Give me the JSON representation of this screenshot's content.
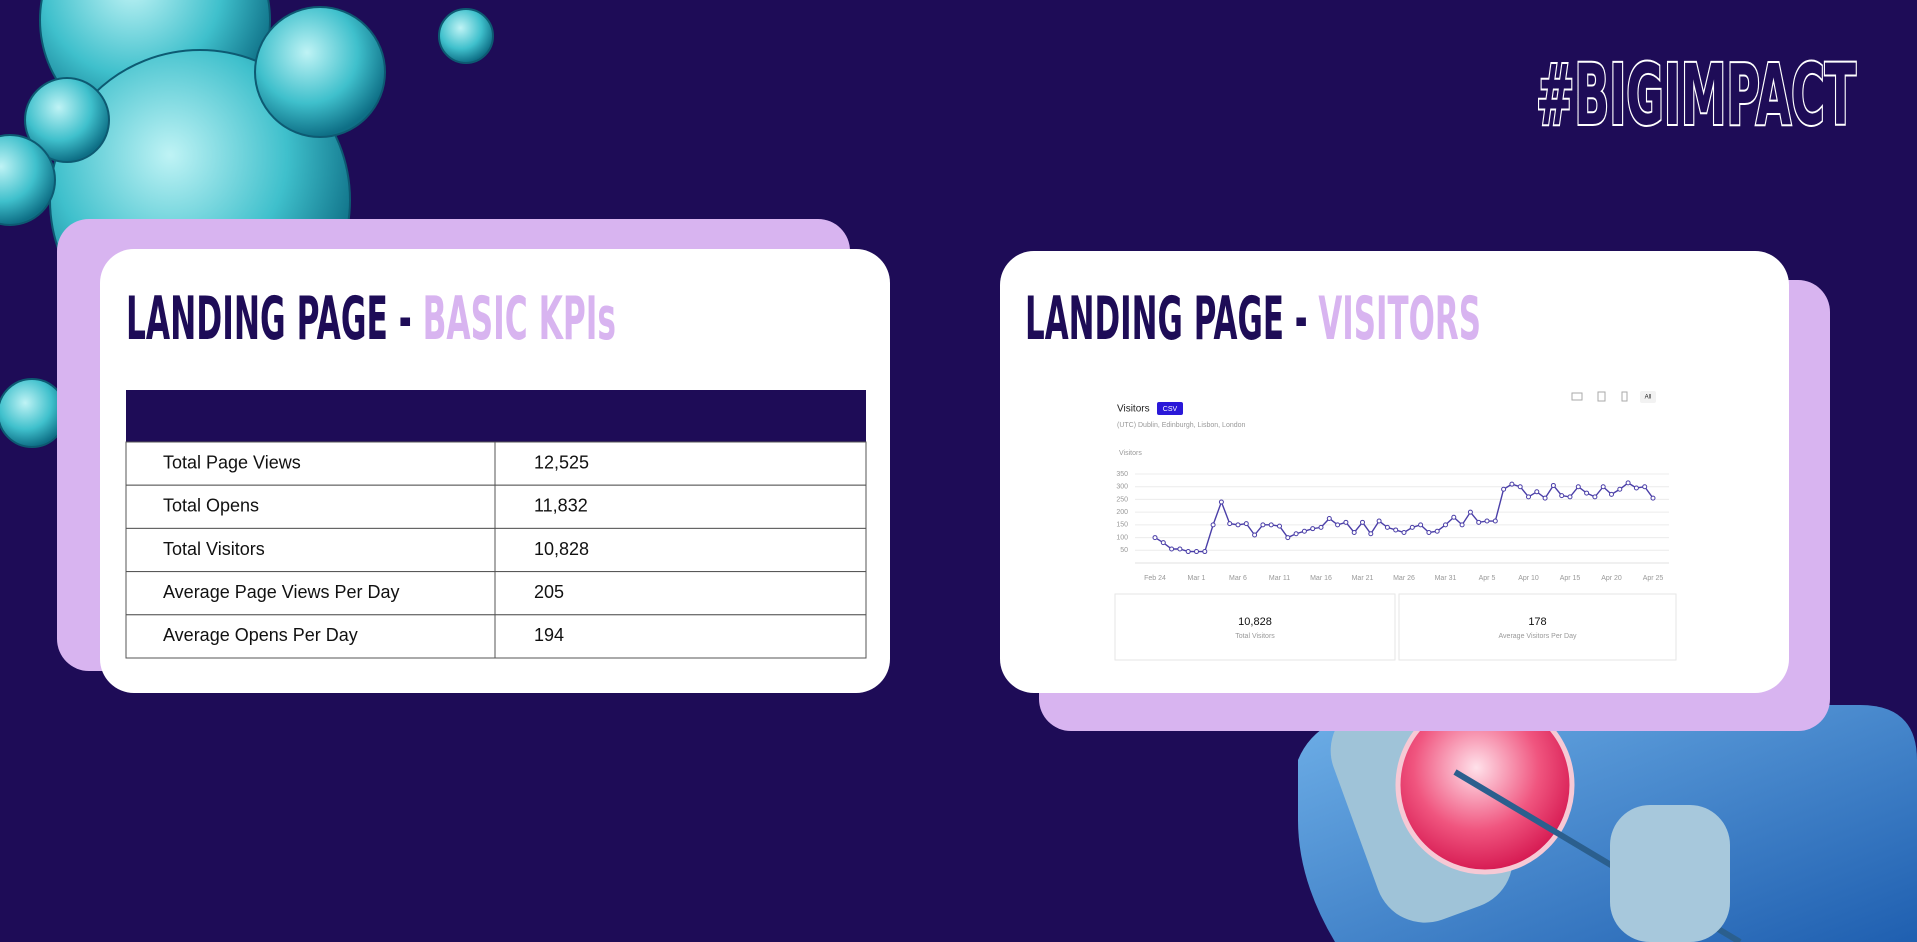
{
  "header": {
    "hashtag": "#BIGIMPACT"
  },
  "kpi_card": {
    "title": "LANDING PAGE - ",
    "title_highlight": "BASIC KPIs",
    "table": {
      "rows": [
        [
          "Total Page Views",
          "12,525"
        ],
        [
          "Total Opens",
          "11,832"
        ],
        [
          "Total Visitors",
          "10,828"
        ],
        [
          "Average Page Views Per Day",
          "205"
        ],
        [
          "Average Opens Per Day",
          "194"
        ]
      ]
    }
  },
  "visitors_card": {
    "title": "LANDING PAGE - ",
    "title_highlight": "VISITORS",
    "csv_button": "CSV",
    "device_filter": "All",
    "stats": [
      {
        "value": "10,828",
        "label": "Total Visitors"
      },
      {
        "value": "178",
        "label": "Average Visitors Per Day"
      }
    ]
  },
  "chart_data": {
    "type": "line",
    "title": "Visitors",
    "subtitle": "(UTC) Dublin, Edinburgh, Lisbon, London",
    "y_label": "Visitors",
    "categories": [
      "Feb 24",
      null,
      null,
      null,
      null,
      "Mar 1",
      null,
      null,
      null,
      null,
      "Mar 6",
      null,
      null,
      null,
      null,
      "Mar 11",
      null,
      null,
      null,
      null,
      "Mar 16",
      null,
      null,
      null,
      null,
      "Mar 21",
      null,
      null,
      null,
      null,
      "Mar 26",
      null,
      null,
      null,
      null,
      "Mar 31",
      null,
      null,
      null,
      null,
      "Apr 5",
      null,
      null,
      null,
      null,
      "Apr 10",
      null,
      null,
      null,
      null,
      "Apr 15",
      null,
      null,
      null,
      null,
      "Apr 20",
      null,
      null,
      null,
      null,
      "Apr 25"
    ],
    "values": [
      100,
      80,
      55,
      55,
      45,
      45,
      45,
      150,
      240,
      155,
      150,
      155,
      110,
      150,
      150,
      145,
      100,
      115,
      125,
      135,
      140,
      175,
      150,
      160,
      120,
      160,
      115,
      165,
      140,
      130,
      120,
      140,
      150,
      120,
      125,
      150,
      180,
      150,
      200,
      160,
      165,
      165,
      290,
      310,
      300,
      260,
      280,
      255,
      305,
      265,
      260,
      300,
      275,
      260,
      300,
      270,
      290,
      315,
      295,
      300,
      255
    ],
    "color": "#4b3fa8",
    "ylim": [
      0,
      350
    ],
    "yticks": [
      50,
      100,
      150,
      200,
      250,
      300,
      350
    ],
    "grid": true
  }
}
